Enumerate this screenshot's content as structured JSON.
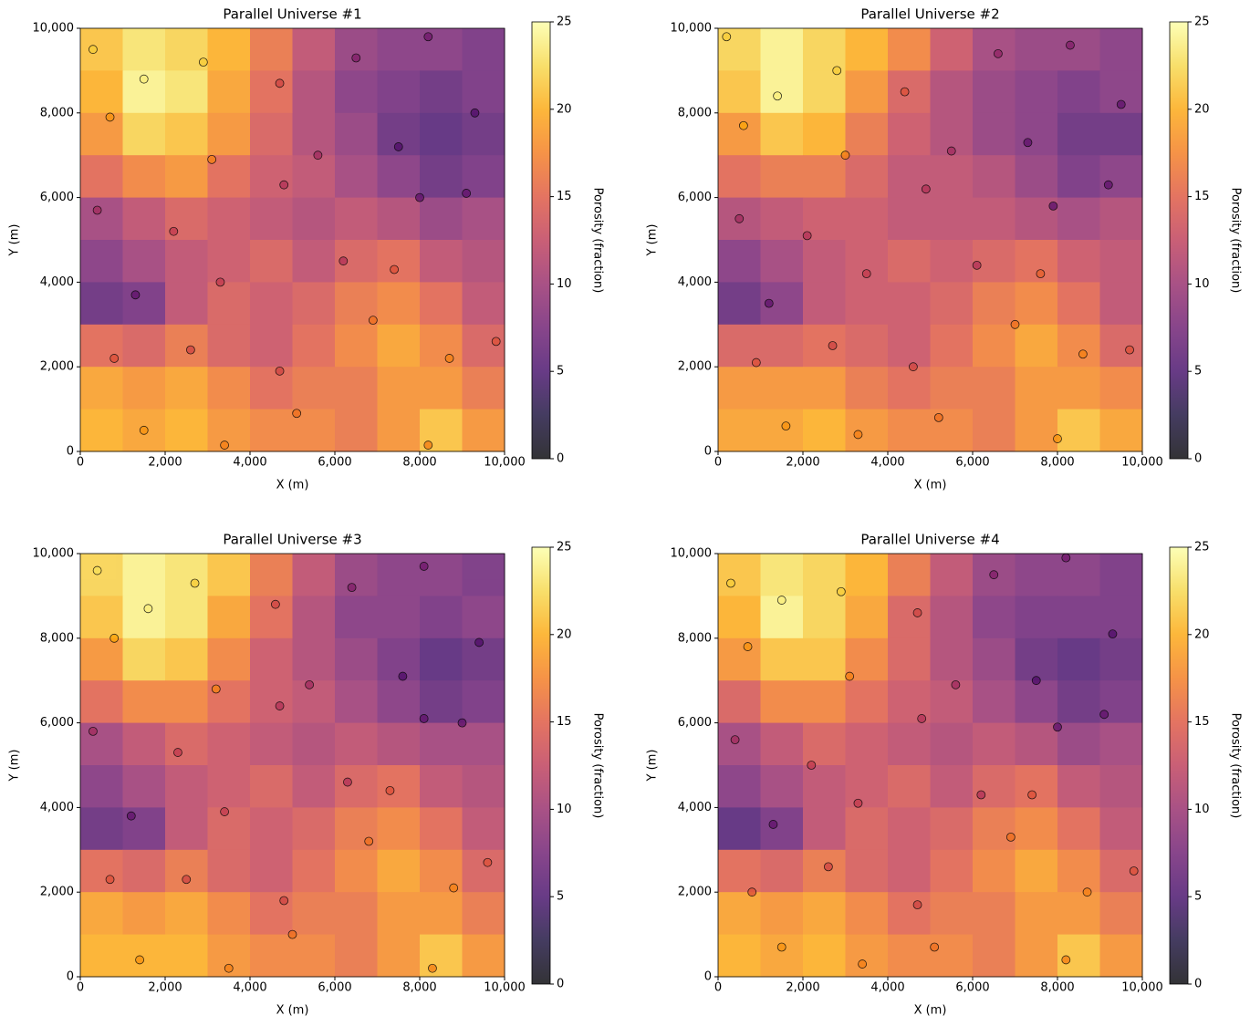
{
  "chart_data": [
    {
      "type": "heatmap",
      "title": "Parallel Universe #1",
      "xlabel": "X (m)",
      "ylabel": "Y (m)",
      "colorbar_label": "Porosity (fraction)",
      "colormap": "inferno",
      "xlim": [
        0,
        10000
      ],
      "ylim": [
        0,
        10000
      ],
      "clim": [
        0,
        25
      ],
      "xticks": [
        0,
        {
          "value": 2000,
          "label": "2,000"
        },
        {
          "value": 4000,
          "label": "4,000"
        },
        {
          "value": 6000,
          "label": "6,000"
        },
        {
          "value": 8000,
          "label": "8,000"
        },
        {
          "value": 10000,
          "label": "10,000"
        }
      ],
      "yticks": [
        0,
        {
          "value": 2000,
          "label": "2,000"
        },
        {
          "value": 4000,
          "label": "4,000"
        },
        {
          "value": 6000,
          "label": "6,000"
        },
        {
          "value": 8000,
          "label": "8,000"
        },
        {
          "value": 10000,
          "label": "10,000"
        }
      ],
      "cticks": [
        0,
        5,
        10,
        15,
        20,
        25
      ],
      "x": [
        500,
        1500,
        2500,
        3500,
        4500,
        5500,
        6500,
        7500,
        8500,
        9500
      ],
      "y": [
        9500,
        8500,
        7500,
        6500,
        5500,
        4500,
        3500,
        2500,
        1500,
        500
      ],
      "z": [
        [
          21,
          23,
          22,
          20,
          16,
          12,
          9,
          8,
          8,
          7
        ],
        [
          20,
          24,
          23,
          19,
          15,
          11,
          8,
          7,
          6,
          7
        ],
        [
          18,
          22,
          21,
          18,
          14,
          11,
          9,
          6,
          5,
          6
        ],
        [
          15,
          17,
          18,
          15,
          13,
          12,
          10,
          8,
          6,
          7
        ],
        [
          10,
          12,
          14,
          13,
          12,
          11,
          12,
          11,
          9,
          10
        ],
        [
          8,
          10,
          12,
          13,
          14,
          12,
          14,
          15,
          12,
          11
        ],
        [
          6,
          7,
          12,
          14,
          13,
          14,
          16,
          17,
          15,
          12
        ],
        [
          15,
          14,
          16,
          14,
          13,
          15,
          17,
          19,
          17,
          14
        ],
        [
          19,
          18,
          19,
          17,
          15,
          16,
          16,
          18,
          18,
          16
        ],
        [
          20,
          19,
          20,
          18,
          17,
          17,
          16,
          18,
          21,
          18
        ]
      ],
      "points": {
        "x": [
          300,
          1500,
          2900,
          4700,
          6500,
          8200,
          9300,
          700,
          3100,
          5600,
          7500,
          9100,
          400,
          2200,
          4800,
          8000,
          1300,
          3300,
          6200,
          7400,
          800,
          2600,
          4700,
          6900,
          8700,
          1500,
          3400,
          5100,
          8200,
          9800
        ],
        "y": [
          9500,
          8800,
          9200,
          8700,
          9300,
          9800,
          8000,
          7900,
          6900,
          7000,
          7200,
          6100,
          5700,
          5200,
          6300,
          6000,
          3700,
          4000,
          4500,
          4300,
          2200,
          2400,
          1900,
          3100,
          2200,
          500,
          150,
          900,
          150,
          2600
        ],
        "values": [
          22,
          24,
          22,
          14,
          9,
          8,
          6,
          19,
          18,
          11,
          6,
          7,
          11,
          13,
          12,
          7,
          7,
          13,
          12,
          15,
          15,
          14,
          14,
          17,
          18,
          19,
          18,
          17,
          18,
          15
        ]
      }
    },
    {
      "type": "heatmap",
      "title": "Parallel Universe #2",
      "xlabel": "X (m)",
      "ylabel": "Y (m)",
      "colorbar_label": "Porosity (fraction)",
      "colormap": "inferno",
      "xlim": [
        0,
        10000
      ],
      "ylim": [
        0,
        10000
      ],
      "clim": [
        0,
        25
      ],
      "xticks": [
        0,
        {
          "value": 2000,
          "label": "2,000"
        },
        {
          "value": 4000,
          "label": "4,000"
        },
        {
          "value": 6000,
          "label": "6,000"
        },
        {
          "value": 8000,
          "label": "8,000"
        },
        {
          "value": 10000,
          "label": "10,000"
        }
      ],
      "yticks": [
        0,
        {
          "value": 2000,
          "label": "2,000"
        },
        {
          "value": 4000,
          "label": "4,000"
        },
        {
          "value": 6000,
          "label": "6,000"
        },
        {
          "value": 8000,
          "label": "8,000"
        },
        {
          "value": 10000,
          "label": "10,000"
        }
      ],
      "cticks": [
        0,
        5,
        10,
        15,
        20,
        25
      ],
      "x": [
        500,
        1500,
        2500,
        3500,
        4500,
        5500,
        6500,
        7500,
        8500,
        9500
      ],
      "y": [
        9500,
        8500,
        7500,
        6500,
        5500,
        4500,
        3500,
        2500,
        1500,
        500
      ],
      "z": [
        [
          22,
          24,
          22,
          20,
          17,
          13,
          10,
          9,
          9,
          8
        ],
        [
          21,
          24,
          22,
          18,
          14,
          11,
          9,
          8,
          7,
          8
        ],
        [
          18,
          21,
          20,
          16,
          13,
          11,
          9,
          8,
          6,
          6
        ],
        [
          15,
          16,
          16,
          14,
          12,
          12,
          11,
          9,
          7,
          8
        ],
        [
          11,
          12,
          13,
          13,
          12,
          12,
          12,
          11,
          10,
          11
        ],
        [
          8,
          10,
          12,
          13,
          14,
          13,
          14,
          15,
          13,
          12
        ],
        [
          6,
          8,
          12,
          13,
          13,
          14,
          16,
          17,
          15,
          12
        ],
        [
          14,
          14,
          15,
          14,
          13,
          15,
          17,
          19,
          17,
          14
        ],
        [
          18,
          18,
          18,
          16,
          15,
          16,
          16,
          18,
          18,
          17
        ],
        [
          19,
          19,
          20,
          18,
          17,
          17,
          16,
          18,
          21,
          19
        ]
      ],
      "points": {
        "x": [
          200,
          1400,
          2800,
          4400,
          6600,
          8300,
          9500,
          600,
          3000,
          5500,
          7300,
          9200,
          500,
          2100,
          4900,
          7900,
          1200,
          3500,
          6100,
          7600,
          900,
          2700,
          4600,
          7000,
          8600,
          1600,
          3300,
          5200,
          8000,
          9700
        ],
        "y": [
          9800,
          8400,
          9000,
          8500,
          9400,
          9600,
          8200,
          7700,
          7000,
          7100,
          7300,
          6300,
          5500,
          5100,
          6200,
          5800,
          3500,
          4200,
          4400,
          4200,
          2100,
          2500,
          2000,
          3000,
          2300,
          600,
          400,
          800,
          300,
          2400
        ],
        "values": [
          22,
          24,
          22,
          15,
          10,
          9,
          7,
          20,
          18,
          11,
          7,
          7,
          11,
          12,
          12,
          7,
          7,
          13,
          12,
          16,
          15,
          14,
          14,
          17,
          18,
          19,
          18,
          17,
          19,
          15
        ]
      }
    },
    {
      "type": "heatmap",
      "title": "Parallel Universe #3",
      "xlabel": "X (m)",
      "ylabel": "Y (m)",
      "colorbar_label": "Porosity (fraction)",
      "colormap": "inferno",
      "xlim": [
        0,
        10000
      ],
      "ylim": [
        0,
        10000
      ],
      "clim": [
        0,
        25
      ],
      "xticks": [
        0,
        {
          "value": 2000,
          "label": "2,000"
        },
        {
          "value": 4000,
          "label": "4,000"
        },
        {
          "value": 6000,
          "label": "6,000"
        },
        {
          "value": 8000,
          "label": "8,000"
        },
        {
          "value": 10000,
          "label": "10,000"
        }
      ],
      "yticks": [
        0,
        {
          "value": 2000,
          "label": "2,000"
        },
        {
          "value": 4000,
          "label": "4,000"
        },
        {
          "value": 6000,
          "label": "6,000"
        },
        {
          "value": 8000,
          "label": "8,000"
        },
        {
          "value": 10000,
          "label": "10,000"
        }
      ],
      "cticks": [
        0,
        5,
        10,
        15,
        20,
        25
      ],
      "x": [
        500,
        1500,
        2500,
        3500,
        4500,
        5500,
        6500,
        7500,
        8500,
        9500
      ],
      "y": [
        9500,
        8500,
        7500,
        6500,
        5500,
        4500,
        3500,
        2500,
        1500,
        500
      ],
      "z": [
        [
          22,
          24,
          23,
          21,
          16,
          12,
          9,
          8,
          8,
          7
        ],
        [
          21,
          24,
          23,
          19,
          15,
          11,
          8,
          8,
          7,
          8
        ],
        [
          18,
          22,
          21,
          17,
          13,
          11,
          9,
          7,
          5,
          6
        ],
        [
          15,
          17,
          17,
          15,
          13,
          12,
          10,
          8,
          6,
          7
        ],
        [
          10,
          12,
          14,
          13,
          12,
          11,
          12,
          11,
          10,
          10
        ],
        [
          8,
          10,
          12,
          13,
          14,
          12,
          14,
          15,
          12,
          11
        ],
        [
          6,
          7,
          12,
          14,
          13,
          14,
          16,
          17,
          15,
          12
        ],
        [
          15,
          14,
          16,
          14,
          13,
          15,
          17,
          19,
          17,
          14
        ],
        [
          19,
          18,
          19,
          17,
          15,
          16,
          16,
          18,
          18,
          16
        ],
        [
          20,
          20,
          20,
          18,
          17,
          17,
          16,
          18,
          21,
          18
        ]
      ],
      "points": {
        "x": [
          400,
          1600,
          2700,
          4600,
          6400,
          8100,
          9400,
          800,
          3200,
          5400,
          7600,
          9000,
          300,
          2300,
          4700,
          8100,
          1200,
          3400,
          6300,
          7300,
          700,
          2500,
          4800,
          6800,
          8800,
          1400,
          3500,
          5000,
          8300,
          9600
        ],
        "y": [
          9600,
          8700,
          9300,
          8800,
          9200,
          9700,
          7900,
          8000,
          6800,
          6900,
          7100,
          6000,
          5800,
          5300,
          6400,
          6100,
          3800,
          3900,
          4600,
          4400,
          2300,
          2300,
          1800,
          3200,
          2100,
          400,
          200,
          1000,
          200,
          2700
        ],
        "values": [
          23,
          24,
          22,
          14,
          9,
          8,
          6,
          20,
          18,
          11,
          6,
          7,
          11,
          13,
          12,
          7,
          7,
          13,
          12,
          15,
          15,
          14,
          14,
          17,
          18,
          19,
          18,
          17,
          18,
          15
        ]
      }
    },
    {
      "type": "heatmap",
      "title": "Parallel Universe #4",
      "xlabel": "X (m)",
      "ylabel": "Y (m)",
      "colorbar_label": "Porosity (fraction)",
      "colormap": "inferno",
      "xlim": [
        0,
        10000
      ],
      "ylim": [
        0,
        10000
      ],
      "clim": [
        0,
        25
      ],
      "xticks": [
        0,
        {
          "value": 2000,
          "label": "2,000"
        },
        {
          "value": 4000,
          "label": "4,000"
        },
        {
          "value": 6000,
          "label": "6,000"
        },
        {
          "value": 8000,
          "label": "8,000"
        },
        {
          "value": 10000,
          "label": "10,000"
        }
      ],
      "yticks": [
        0,
        {
          "value": 2000,
          "label": "2,000"
        },
        {
          "value": 4000,
          "label": "4,000"
        },
        {
          "value": 6000,
          "label": "6,000"
        },
        {
          "value": 8000,
          "label": "8,000"
        },
        {
          "value": 10000,
          "label": "10,000"
        }
      ],
      "cticks": [
        0,
        5,
        10,
        15,
        20,
        25
      ],
      "x": [
        500,
        1500,
        2500,
        3500,
        4500,
        5500,
        6500,
        7500,
        8500,
        9500
      ],
      "y": [
        9500,
        8500,
        7500,
        6500,
        5500,
        4500,
        3500,
        2500,
        1500,
        500
      ],
      "z": [
        [
          21,
          23,
          22,
          20,
          16,
          12,
          9,
          8,
          8,
          7
        ],
        [
          20,
          24,
          22,
          19,
          14,
          11,
          8,
          7,
          7,
          7
        ],
        [
          18,
          21,
          21,
          17,
          14,
          11,
          9,
          6,
          5,
          6
        ],
        [
          14,
          17,
          17,
          15,
          13,
          12,
          10,
          8,
          6,
          7
        ],
        [
          10,
          12,
          14,
          13,
          12,
          11,
          12,
          11,
          9,
          10
        ],
        [
          8,
          10,
          12,
          13,
          14,
          12,
          14,
          15,
          12,
          11
        ],
        [
          5,
          7,
          12,
          14,
          13,
          14,
          16,
          17,
          15,
          12
        ],
        [
          15,
          14,
          16,
          14,
          13,
          15,
          17,
          19,
          17,
          14
        ],
        [
          19,
          18,
          19,
          17,
          15,
          16,
          16,
          18,
          18,
          16
        ],
        [
          20,
          19,
          20,
          18,
          17,
          17,
          16,
          18,
          21,
          18
        ]
      ],
      "points": {
        "x": [
          300,
          1500,
          2900,
          4700,
          6500,
          8200,
          9300,
          700,
          3100,
          5600,
          7500,
          9100,
          400,
          2200,
          4800,
          8000,
          1300,
          3300,
          6200,
          7400,
          800,
          2600,
          4700,
          6900,
          8700,
          1500,
          3400,
          5100,
          8200,
          9800
        ],
        "y": [
          9300,
          8900,
          9100,
          8600,
          9500,
          9900,
          8100,
          7800,
          7100,
          6900,
          7000,
          6200,
          5600,
          5000,
          6100,
          5900,
          3600,
          4100,
          4300,
          4300,
          2000,
          2600,
          1700,
          3300,
          2000,
          700,
          300,
          700,
          400,
          2500
        ],
        "values": [
          22,
          24,
          22,
          14,
          9,
          8,
          6,
          19,
          18,
          11,
          6,
          7,
          11,
          13,
          12,
          7,
          7,
          13,
          12,
          15,
          15,
          14,
          14,
          17,
          18,
          19,
          18,
          17,
          18,
          15
        ]
      }
    }
  ]
}
